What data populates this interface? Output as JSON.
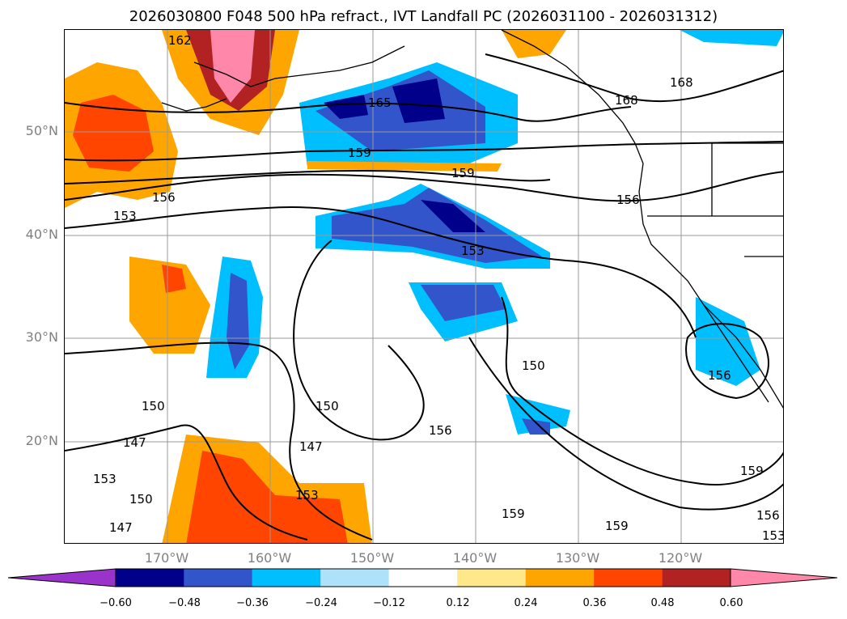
{
  "title": "2026030800 F048 500 hPa refract., IVT Landfall PC (2026031100 - 2026031312)",
  "map": {
    "lat_ticks": [
      "50°N",
      "40°N",
      "30°N",
      "20°N"
    ],
    "lon_ticks": [
      "170°W",
      "160°W",
      "150°W",
      "140°W",
      "130°W",
      "120°W"
    ],
    "contour_labels": [
      "162",
      "165",
      "168",
      "168",
      "159",
      "159",
      "156",
      "156",
      "153",
      "153",
      "156",
      "150",
      "150",
      "150",
      "156",
      "147",
      "153",
      "147",
      "147",
      "153",
      "150",
      "159",
      "159",
      "159",
      "156",
      "153"
    ]
  },
  "colorbar": {
    "ticks": [
      "−0.60",
      "−0.48",
      "−0.36",
      "−0.24",
      "−0.12",
      "0.12",
      "0.24",
      "0.36",
      "0.48",
      "0.60"
    ],
    "colors": [
      "#9933cc",
      "#00008b",
      "#3355cc",
      "#00bfff",
      "#aee2fa",
      "#ffffff",
      "#ffe88a",
      "#ffa500",
      "#ff4500",
      "#b22222",
      "#ff88aa"
    ]
  }
}
